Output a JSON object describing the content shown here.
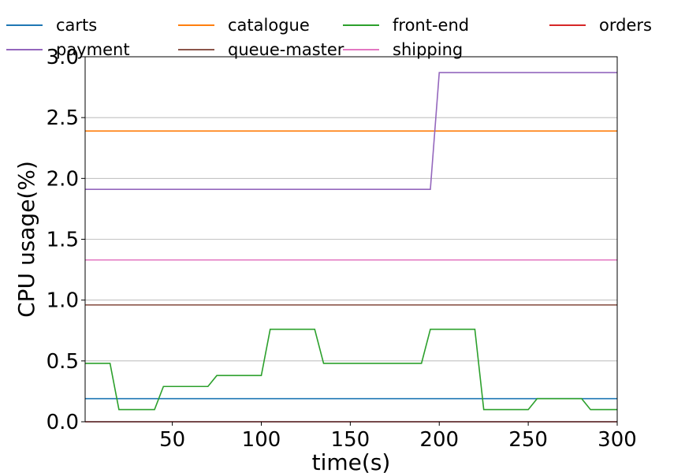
{
  "chart_data": {
    "type": "line",
    "title": "",
    "xlabel": "time(s)",
    "ylabel": "CPU usage(%)",
    "xlim": [
      1,
      300
    ],
    "ylim": [
      0,
      3.0
    ],
    "xticks": [
      50,
      100,
      150,
      200,
      250,
      300
    ],
    "xtick_labels": [
      "50",
      "100",
      "150",
      "200",
      "250",
      "300"
    ],
    "yticks": [
      0,
      0.5,
      1.0,
      1.5,
      2.0,
      2.5,
      3.0
    ],
    "ytick_labels": [
      "0.0",
      "0.5",
      "1.0",
      "1.5",
      "2.0",
      "2.5",
      "3.0"
    ],
    "grid": "horizontal",
    "legend_placement": "top, above plot, 4 columns",
    "series": [
      {
        "name": "carts",
        "color": "#1f77b4",
        "x": [
          1,
          300
        ],
        "y": [
          0.19,
          0.19
        ]
      },
      {
        "name": "catalogue",
        "color": "#ff7f0e",
        "x": [
          1,
          300
        ],
        "y": [
          2.39,
          2.39
        ]
      },
      {
        "name": "front-end",
        "color": "#2ca02c",
        "x": [
          1,
          15,
          20,
          40,
          45,
          70,
          75,
          100,
          105,
          130,
          135,
          190,
          195,
          220,
          225,
          250,
          255,
          280,
          285,
          300
        ],
        "y": [
          0.48,
          0.48,
          0.1,
          0.1,
          0.29,
          0.29,
          0.38,
          0.38,
          0.76,
          0.76,
          0.48,
          0.48,
          0.76,
          0.76,
          0.1,
          0.1,
          0.19,
          0.19,
          0.1,
          0.1
        ]
      },
      {
        "name": "orders",
        "color": "#d62728",
        "x": [
          1,
          300
        ],
        "y": [
          0.0,
          0.0
        ]
      },
      {
        "name": "payment",
        "color": "#9467bd",
        "x": [
          1,
          195,
          200,
          300
        ],
        "y": [
          1.91,
          1.91,
          2.87,
          2.87
        ]
      },
      {
        "name": "queue-master",
        "color": "#8c564b",
        "x": [
          1,
          300
        ],
        "y": [
          0.96,
          0.96
        ]
      },
      {
        "name": "shipping",
        "color": "#e377c2",
        "x": [
          1,
          300
        ],
        "y": [
          1.33,
          1.33
        ]
      }
    ]
  }
}
